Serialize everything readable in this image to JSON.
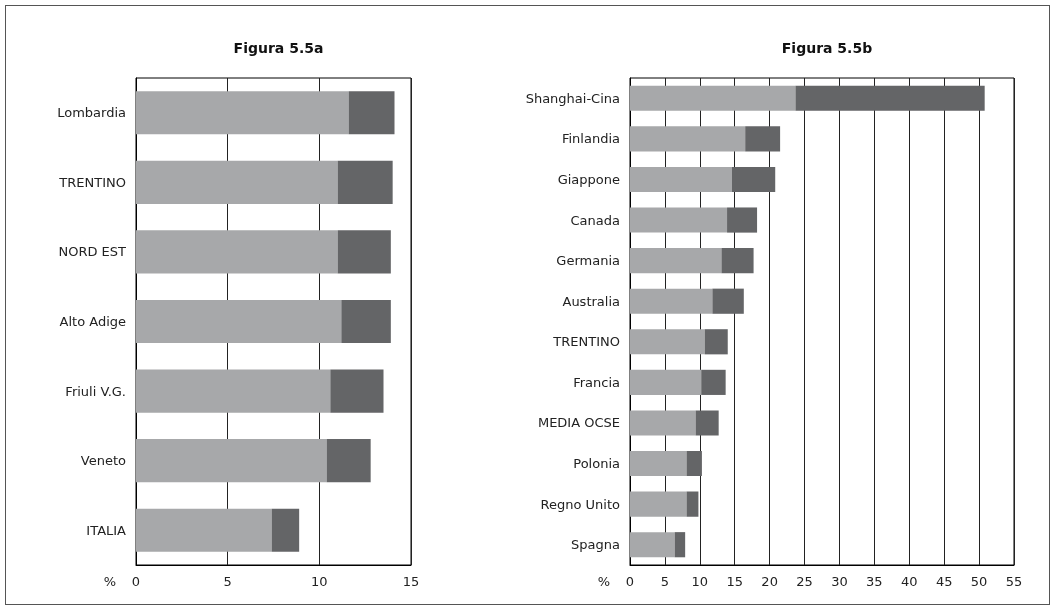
{
  "chart_data": [
    {
      "type": "bar",
      "title": "Figura 5.5a",
      "xlabel": "%",
      "orientation": "horizontal",
      "stacked": true,
      "grid": "x",
      "categories": [
        "Lombardia",
        "TRENTINO",
        "NORD EST",
        "Alto Adige",
        "Friuli V.G.",
        "Veneto",
        "ITALIA"
      ],
      "series": [
        {
          "color": "#a7a8aa",
          "values": [
            11.6,
            11.0,
            11.0,
            11.2,
            10.6,
            10.4,
            7.4
          ]
        },
        {
          "color": "#646567",
          "values": [
            2.5,
            3.0,
            2.9,
            2.7,
            2.9,
            2.4,
            1.5
          ]
        }
      ],
      "xlim": [
        0,
        15
      ],
      "xticks": [
        0,
        5,
        10,
        15
      ]
    },
    {
      "type": "bar",
      "title": "Figura 5.5b",
      "xlabel": "%",
      "orientation": "horizontal",
      "stacked": true,
      "grid": "x",
      "categories": [
        "Shanghai-Cina",
        "Finlandia",
        "Giappone",
        "Canada",
        "Germania",
        "Australia",
        "TRENTINO",
        "Francia",
        "MEDIA OCSE",
        "Polonia",
        "Regno Unito",
        "Spagna"
      ],
      "series": [
        {
          "color": "#a7a8aa",
          "values": [
            23.7,
            16.5,
            14.6,
            13.9,
            13.1,
            11.8,
            10.7,
            10.2,
            9.4,
            8.1,
            8.1,
            6.4
          ]
        },
        {
          "color": "#646567",
          "values": [
            27.1,
            5.0,
            6.2,
            4.3,
            4.6,
            4.5,
            3.3,
            3.5,
            3.3,
            2.2,
            1.7,
            1.5
          ]
        }
      ],
      "xlim": [
        0,
        55
      ],
      "xticks": [
        0,
        5,
        10,
        15,
        20,
        25,
        30,
        35,
        40,
        45,
        50,
        55
      ]
    }
  ]
}
